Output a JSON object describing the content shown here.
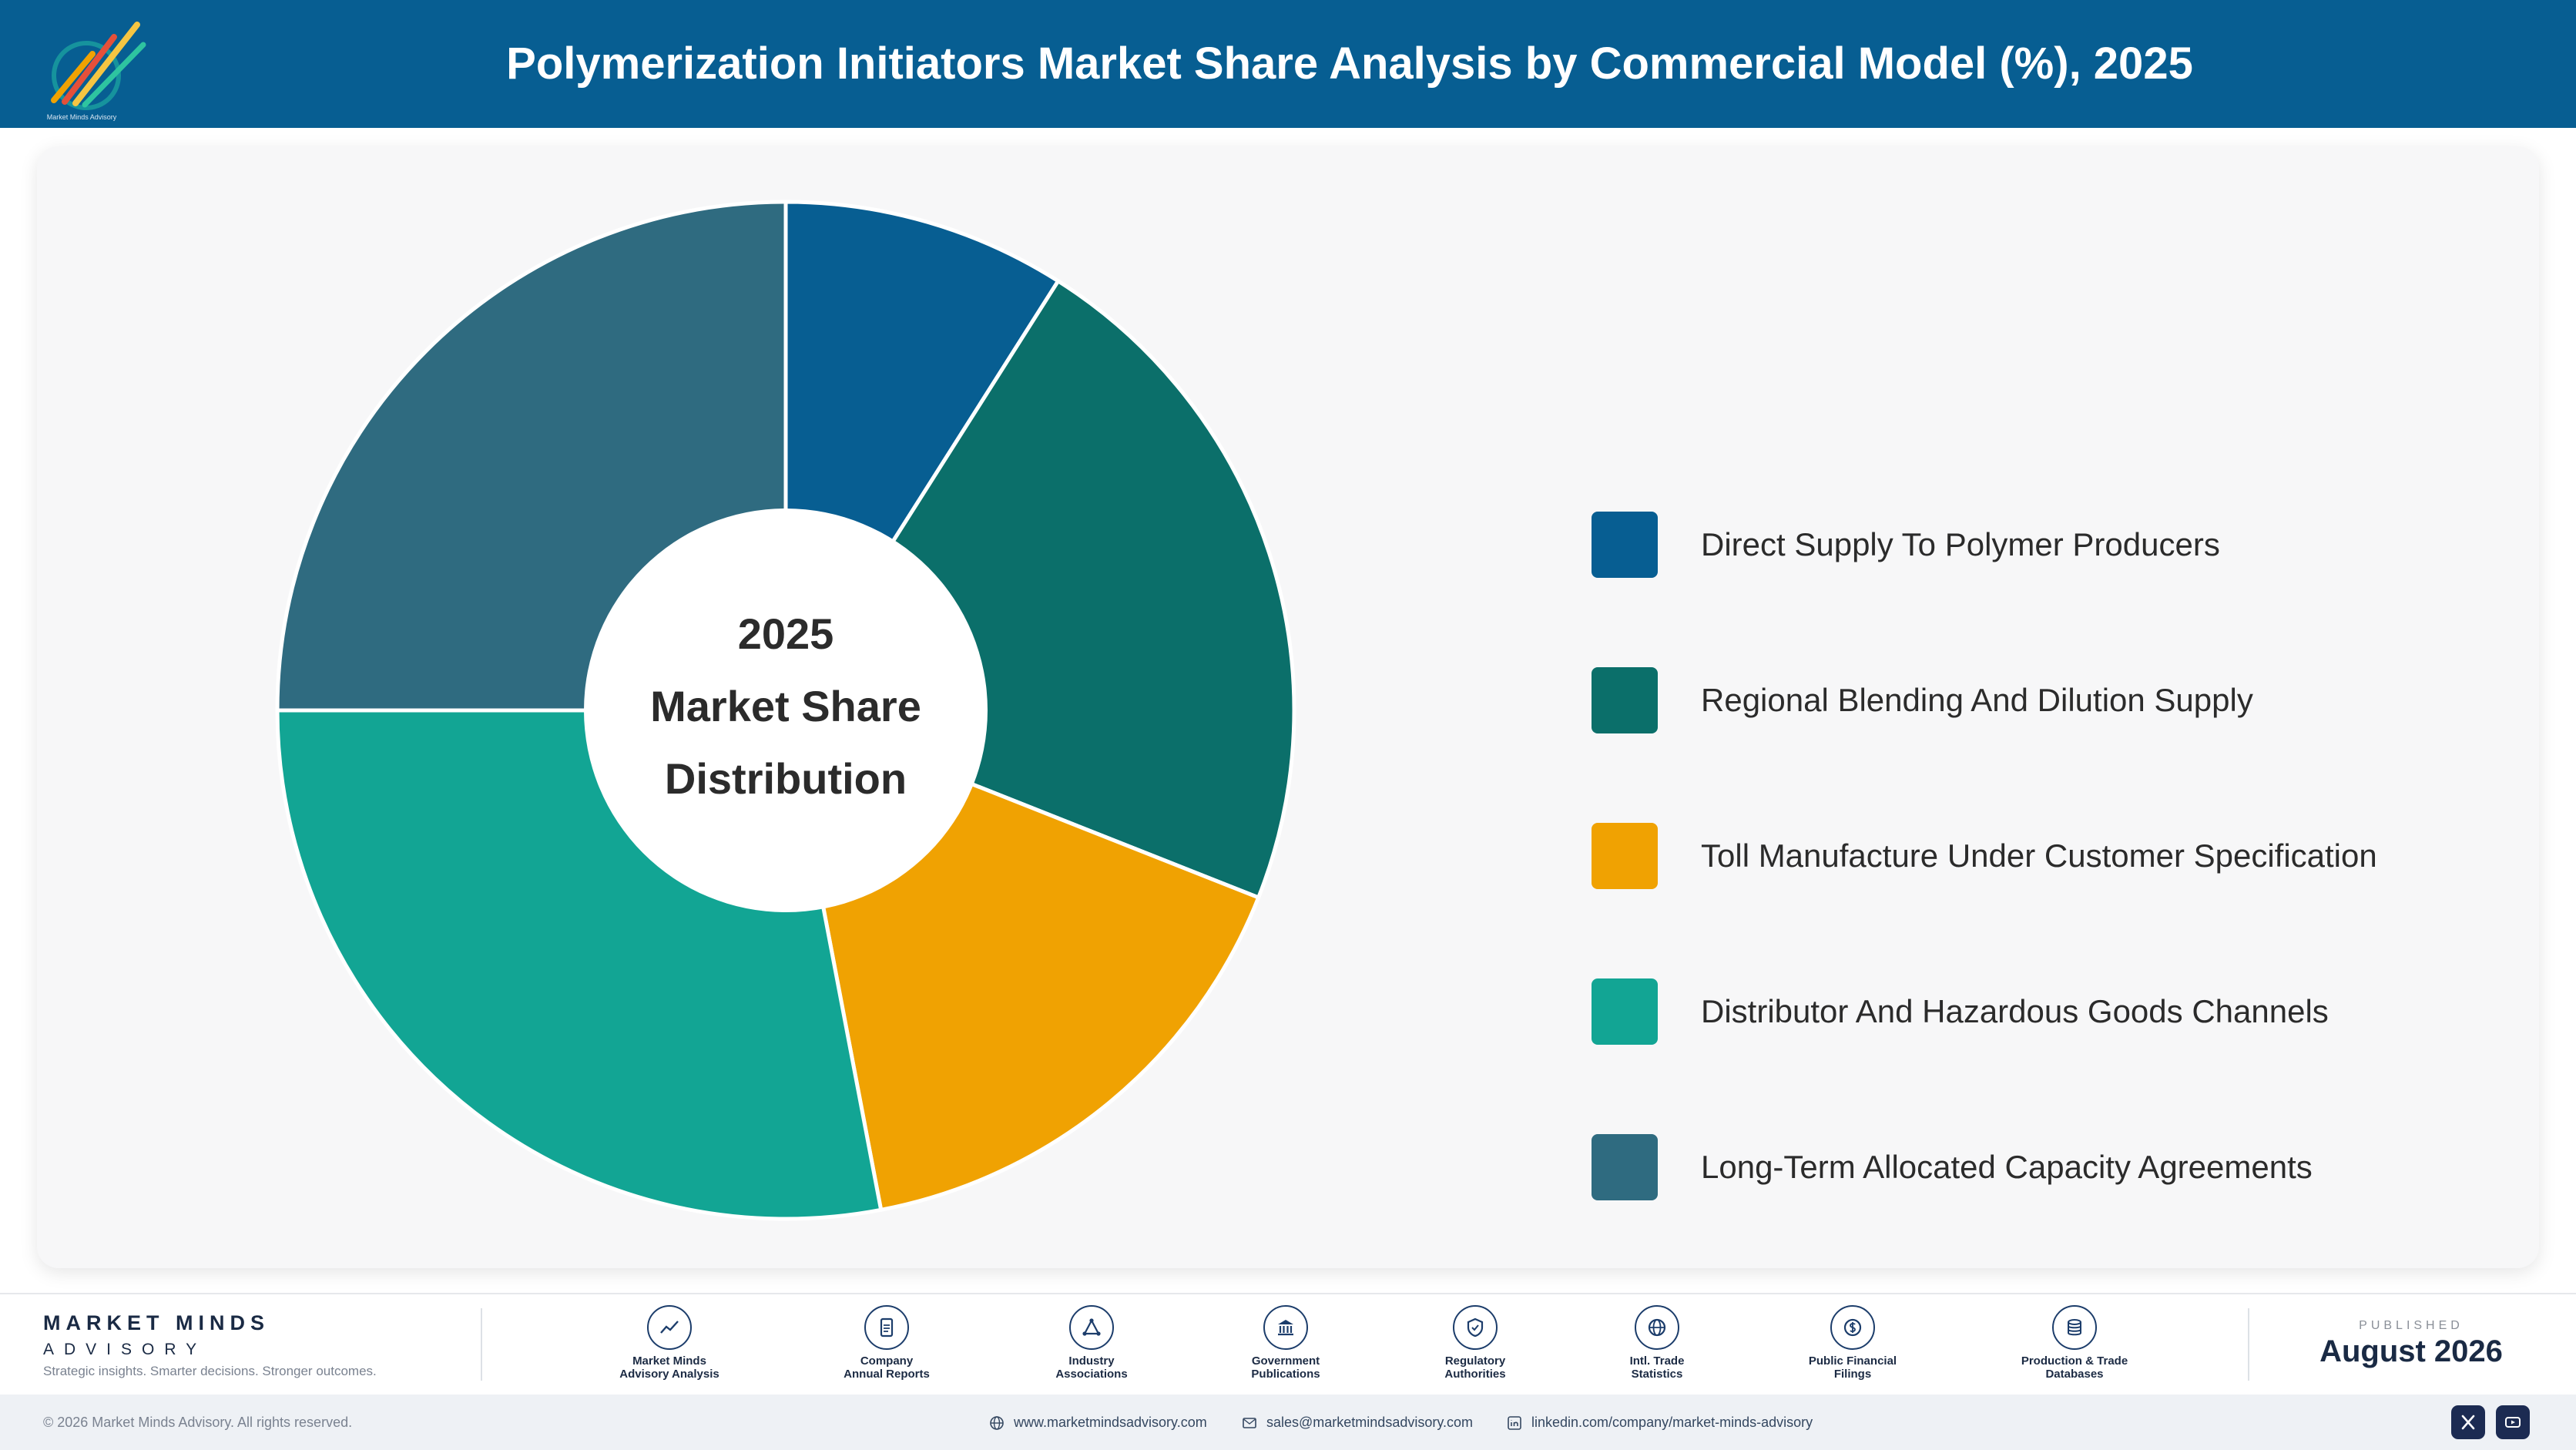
{
  "header": {
    "title": "Polymerization Initiators Market Share Analysis by Commercial Model (%), 2025",
    "logo_text": "Market Minds Advisory"
  },
  "chart_data": {
    "type": "pie",
    "donut": true,
    "title": "Polymerization Initiators Market Share Analysis by Commercial Model (%), 2025",
    "center_label": [
      "2025",
      "Market Share",
      "Distribution"
    ],
    "categories": [
      "Direct Supply To Polymer Producers",
      "Regional Blending And Dilution Supply",
      "Toll Manufacture Under Customer Specification",
      "Distributor And Hazardous Goods Channels",
      "Long-Term Allocated Capacity Agreements"
    ],
    "values": [
      9,
      22,
      16,
      28,
      25
    ],
    "colors": [
      "#075e92",
      "#0b6f6a",
      "#f0a202",
      "#12a594",
      "#2f6b80"
    ],
    "legend_position": "right"
  },
  "footer": {
    "brand_name": "MARKET MINDS",
    "brand_sub": "ADVISORY",
    "tagline": "Strategic insights. Smarter decisions. Stronger outcomes.",
    "sources": [
      {
        "line1": "Market Minds",
        "line2": "Advisory Analysis",
        "icon": "chart-line-icon"
      },
      {
        "line1": "Company",
        "line2": "Annual Reports",
        "icon": "document-icon"
      },
      {
        "line1": "Industry",
        "line2": "Associations",
        "icon": "network-icon"
      },
      {
        "line1": "Government",
        "line2": "Publications",
        "icon": "building-icon"
      },
      {
        "line1": "Regulatory",
        "line2": "Authorities",
        "icon": "shield-icon"
      },
      {
        "line1": "Intl. Trade",
        "line2": "Statistics",
        "icon": "globe-icon"
      },
      {
        "line1": "Public Financial",
        "line2": "Filings",
        "icon": "coin-icon"
      },
      {
        "line1": "Production & Trade",
        "line2": "Databases",
        "icon": "database-icon"
      }
    ],
    "published_label": "PUBLISHED",
    "published_date": "August 2026"
  },
  "bottom_bar": {
    "copyright": "© 2026 Market Minds Advisory. All rights reserved.",
    "website": "www.marketmindsadvisory.com",
    "email": "sales@marketmindsadvisory.com",
    "linkedin": "linkedin.com/company/market-minds-advisory"
  }
}
